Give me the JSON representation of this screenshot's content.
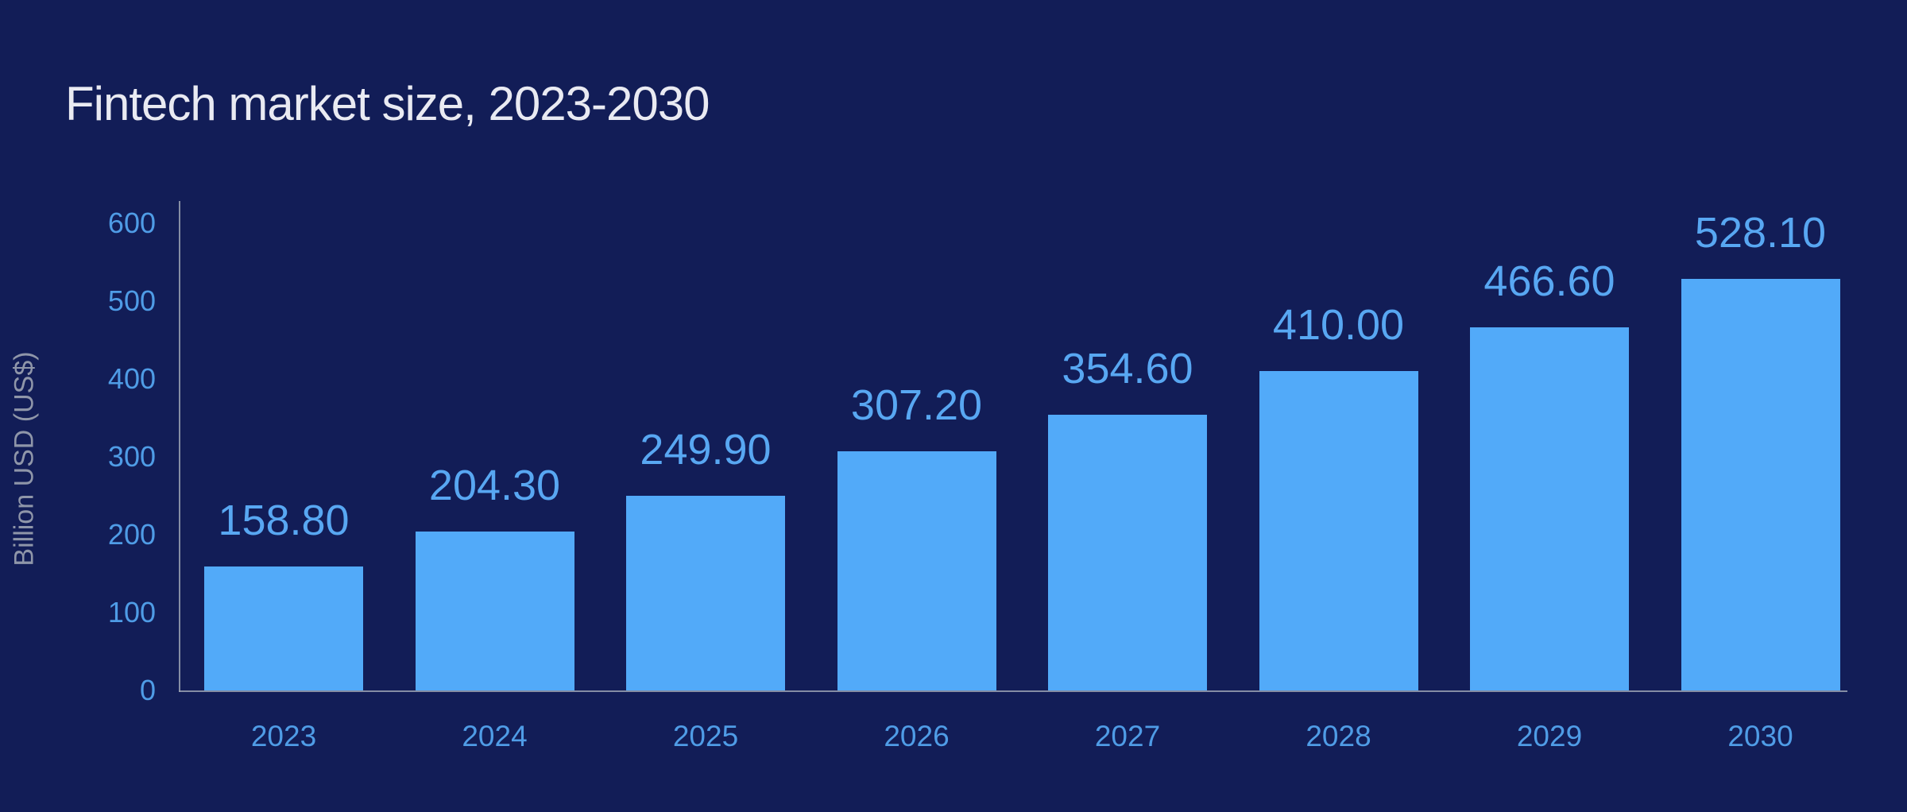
{
  "chart_data": {
    "type": "bar",
    "title": "Fintech market size, 2023-2030",
    "xlabel": "",
    "ylabel": "Billion USD (US$)",
    "categories": [
      "2023",
      "2024",
      "2025",
      "2026",
      "2027",
      "2028",
      "2029",
      "2030"
    ],
    "values": [
      158.8,
      204.3,
      249.9,
      307.2,
      354.6,
      410.0,
      466.6,
      528.1
    ],
    "value_labels": [
      "158.80",
      "204.30",
      "249.90",
      "307.20",
      "354.60",
      "410.00",
      "466.60",
      "528.10"
    ],
    "y_ticks": [
      0,
      100,
      200,
      300,
      400,
      500,
      600
    ],
    "ylim": [
      0,
      600
    ],
    "grid": false,
    "legend": false,
    "series": [
      {
        "name": "Fintech market size",
        "values": [
          158.8,
          204.3,
          249.9,
          307.2,
          354.6,
          410.0,
          466.6,
          528.1
        ]
      }
    ]
  },
  "colors": {
    "background": "#121d57",
    "bar": "#52aaf9",
    "data_label": "#58a7f2",
    "tick_label": "#4f9ce6",
    "axis_line": "#9aa1b2",
    "axis_label": "#8f96a9",
    "title": "#e9eaf2"
  }
}
